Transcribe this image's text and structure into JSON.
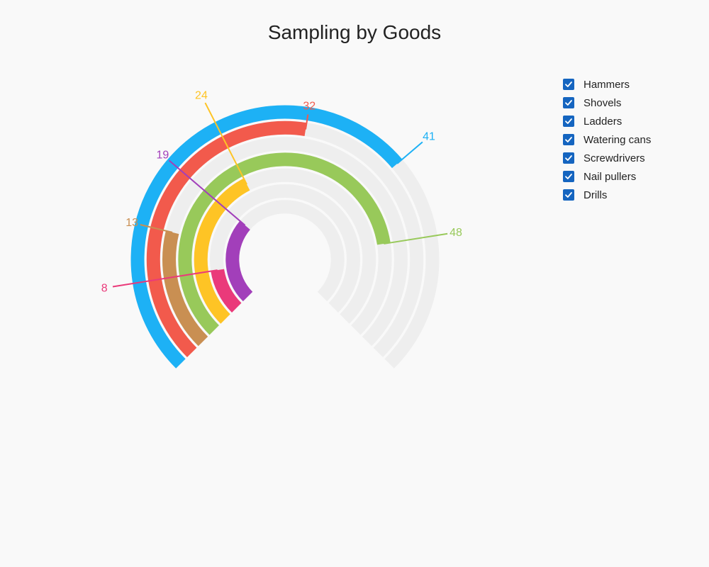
{
  "chart_data": {
    "type": "radial-bar",
    "title": "Sampling by Goods",
    "max_value": 60,
    "legend_position": "top-right",
    "track_color": "#eeeeee",
    "check_color": "#1565c0",
    "series": [
      {
        "name": "Hammers",
        "value": 41,
        "color": "#1db1f5"
      },
      {
        "name": "Shovels",
        "value": 32,
        "color": "#f25a4c"
      },
      {
        "name": "Ladders",
        "value": 13,
        "color": "#c98f52"
      },
      {
        "name": "Watering cans",
        "value": 48,
        "color": "#98c95a"
      },
      {
        "name": "Screwdrivers",
        "value": 24,
        "color": "#fec425"
      },
      {
        "name": "Nail pullers",
        "value": 8,
        "color": "#ea3a7a"
      },
      {
        "name": "Drills",
        "value": 19,
        "color": "#a23fba"
      }
    ]
  }
}
